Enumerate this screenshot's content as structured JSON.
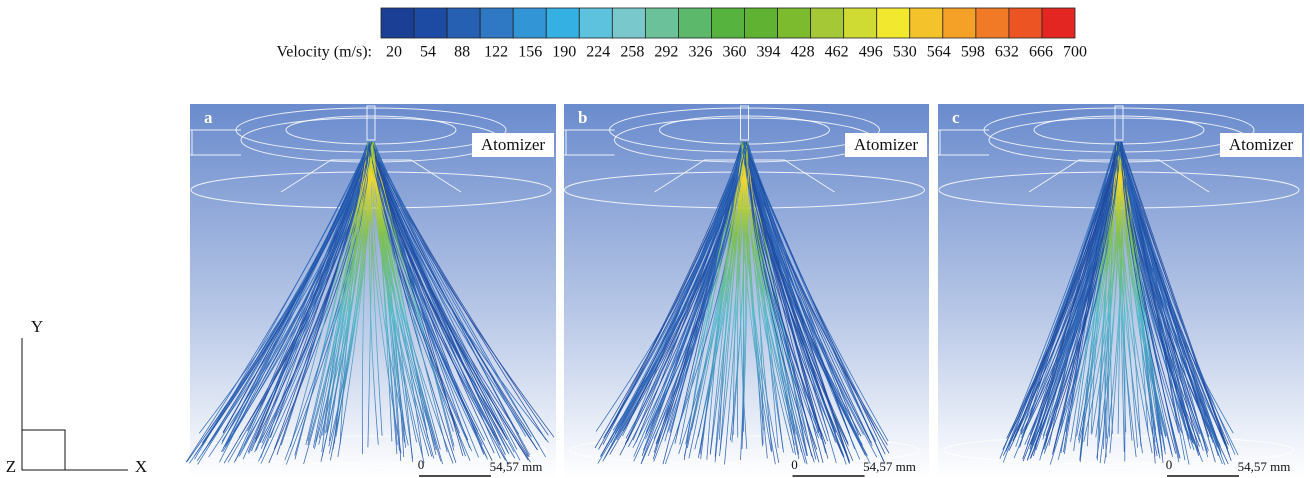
{
  "colorbar": {
    "label": "Velocity (m/s):",
    "ticks": [
      20,
      54,
      88,
      122,
      156,
      190,
      224,
      258,
      292,
      326,
      360,
      394,
      428,
      462,
      496,
      530,
      564,
      598,
      632,
      666,
      700
    ],
    "colors": [
      "#1b3f94",
      "#1d4aa3",
      "#2560b3",
      "#2f78c4",
      "#3296d6",
      "#35b0e3",
      "#5cc2dd",
      "#79c9cc",
      "#6bc29a",
      "#5cb86b",
      "#55b33e",
      "#5fb232",
      "#7cba2e",
      "#a4c836",
      "#cfdb33",
      "#f2e92e",
      "#f4c22a",
      "#f5a027",
      "#f07a25",
      "#ec5424",
      "#e32622"
    ]
  },
  "panels": [
    {
      "label": "a",
      "annotation": "Atomizer",
      "scale_start": "0",
      "scale_end": "54,57 mm"
    },
    {
      "label": "b",
      "annotation": "Atomizer",
      "scale_start": "0",
      "scale_end": "54,57 mm"
    },
    {
      "label": "c",
      "annotation": "Atomizer",
      "scale_start": "0",
      "scale_end": "54,57 mm"
    }
  ],
  "axes": {
    "y": "Y",
    "z": "Z",
    "x": "X"
  }
}
